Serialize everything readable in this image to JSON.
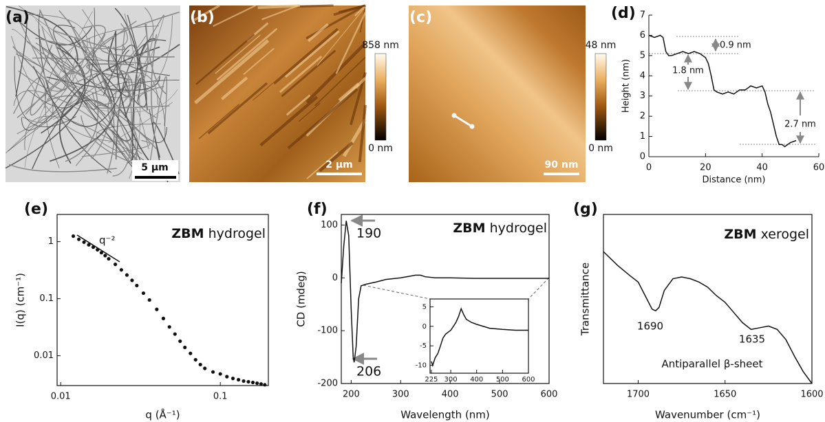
{
  "images": [
    {
      "label": "(a)",
      "scale_bar": "5 µm"
    },
    {
      "label": "(b)",
      "scale_bar": "2 µm",
      "colorbar": [
        "858 nm",
        "0 nm"
      ]
    },
    {
      "label": "(c)",
      "scale_bar": "90 nm",
      "colorbar": [
        "48 nm",
        "0 nm"
      ]
    }
  ],
  "chart_data": [
    {
      "type": "line",
      "label": "(d)",
      "xlabel": "Distance (nm)",
      "ylabel": "Height (nm)",
      "x": [
        0,
        2,
        4,
        5,
        6,
        7,
        8,
        10,
        12,
        14,
        16,
        18,
        20,
        21,
        22,
        23,
        24,
        26,
        28,
        30,
        32,
        34,
        36,
        38,
        40,
        41,
        42,
        43,
        44,
        45,
        46,
        47,
        48,
        50,
        52
      ],
      "values": [
        6.0,
        5.9,
        6.0,
        5.9,
        5.2,
        5.0,
        5.0,
        5.1,
        5.2,
        5.1,
        5.2,
        5.1,
        4.9,
        4.6,
        4.0,
        3.3,
        3.2,
        3.1,
        3.2,
        3.1,
        3.3,
        3.3,
        3.5,
        3.4,
        3.5,
        3.2,
        2.6,
        2.2,
        1.6,
        1.0,
        0.6,
        0.6,
        0.5,
        0.7,
        0.8
      ],
      "color": "#111111",
      "xlim": [
        0,
        60
      ],
      "ylim": [
        0,
        7
      ],
      "xticks": [
        0,
        20,
        40,
        60
      ],
      "yticks": [
        0,
        1,
        2,
        3,
        4,
        5,
        6,
        7
      ],
      "annotations": [
        "0.9 nm",
        "1.8 nm",
        "2.7 nm"
      ]
    },
    {
      "type": "scatter",
      "label": "(e)",
      "title_bold": "ZBM",
      "title": "hydrogel",
      "xlabel": "q (Å⁻¹)",
      "ylabel": "I(q) (cm⁻¹)",
      "x": [
        0.012,
        0.013,
        0.014,
        0.015,
        0.016,
        0.017,
        0.018,
        0.019,
        0.02,
        0.022,
        0.024,
        0.026,
        0.028,
        0.03,
        0.033,
        0.036,
        0.04,
        0.044,
        0.048,
        0.052,
        0.056,
        0.06,
        0.065,
        0.07,
        0.075,
        0.08,
        0.09,
        0.1,
        0.11,
        0.12,
        0.13,
        0.14,
        0.15,
        0.16,
        0.17,
        0.18,
        0.19
      ],
      "values": [
        1.25,
        1.1,
        0.98,
        0.88,
        0.8,
        0.72,
        0.64,
        0.57,
        0.5,
        0.4,
        0.32,
        0.26,
        0.21,
        0.17,
        0.125,
        0.095,
        0.065,
        0.045,
        0.032,
        0.024,
        0.018,
        0.014,
        0.011,
        0.0085,
        0.007,
        0.006,
        0.0052,
        0.0048,
        0.0043,
        0.004,
        0.0038,
        0.0036,
        0.0035,
        0.0034,
        0.0033,
        0.0032,
        0.0031
      ],
      "color": "#111111",
      "xscale": "log",
      "yscale": "log",
      "xlim": [
        0.0095,
        0.2
      ],
      "ylim": [
        0.003,
        3
      ],
      "xticks": [
        0.01,
        0.1
      ],
      "yticks": [
        0.01,
        0.1,
        1
      ],
      "annotations": [
        "q⁻²"
      ]
    },
    {
      "type": "line",
      "label": "(f)",
      "title_bold": "ZBM",
      "title": "hydrogel",
      "xlabel": "Wavelength (nm)",
      "ylabel": "CD (mdeg)",
      "x": [
        180,
        185,
        190,
        195,
        200,
        204,
        206,
        210,
        215,
        220,
        230,
        250,
        270,
        300,
        330,
        340,
        350,
        370,
        400,
        450,
        500,
        550,
        600
      ],
      "values": [
        -10,
        60,
        108,
        80,
        -60,
        -150,
        -160,
        -130,
        -40,
        -15,
        -12,
        -8,
        -3,
        0,
        5,
        5,
        2,
        0,
        0,
        -1,
        -1,
        -1,
        -1
      ],
      "color": "#111111",
      "xlim": [
        180,
        600
      ],
      "ylim": [
        -200,
        120
      ],
      "xticks": [
        200,
        300,
        400,
        500,
        600
      ],
      "yticks": [
        -200,
        -100,
        0,
        100
      ],
      "annotations": [
        "190",
        "206"
      ],
      "inset": {
        "type": "line",
        "x": [
          225,
          230,
          240,
          250,
          260,
          270,
          280,
          290,
          300,
          310,
          320,
          330,
          340,
          350,
          360,
          380,
          400,
          450,
          500,
          550,
          600
        ],
        "values": [
          -9,
          -10,
          -8,
          -7,
          -5,
          -3,
          -2,
          -1.5,
          -1,
          0,
          1,
          2.5,
          4.5,
          3,
          1.8,
          1,
          0.5,
          -0.5,
          -0.8,
          -1,
          -1
        ],
        "color": "#111111",
        "xlim": [
          220,
          600
        ],
        "ylim": [
          -12,
          7
        ],
        "xticks": [
          225,
          300,
          400,
          500,
          600
        ],
        "yticks": [
          -10,
          -5,
          0,
          5
        ]
      }
    },
    {
      "type": "line",
      "label": "(g)",
      "title_bold": "ZBM",
      "title": "xerogel",
      "xlabel": "Wavenumber (cm⁻¹)",
      "ylabel": "Transmittance",
      "x": [
        1720,
        1712,
        1705,
        1700,
        1695,
        1692,
        1690,
        1688,
        1685,
        1680,
        1675,
        1670,
        1665,
        1660,
        1655,
        1650,
        1645,
        1640,
        1635,
        1630,
        1625,
        1620,
        1615,
        1610,
        1605,
        1600
      ],
      "values": [
        0.78,
        0.7,
        0.64,
        0.6,
        0.5,
        0.44,
        0.43,
        0.45,
        0.55,
        0.62,
        0.63,
        0.62,
        0.6,
        0.57,
        0.52,
        0.48,
        0.42,
        0.36,
        0.32,
        0.33,
        0.34,
        0.32,
        0.26,
        0.16,
        0.07,
        0.0
      ],
      "color": "#111111",
      "xlim": [
        1720,
        1600
      ],
      "ylim": [
        0,
        1
      ],
      "xticks": [
        1700,
        1650,
        1600
      ],
      "annotations": [
        "1690",
        "1635",
        "Antiparallel β-sheet"
      ]
    }
  ]
}
